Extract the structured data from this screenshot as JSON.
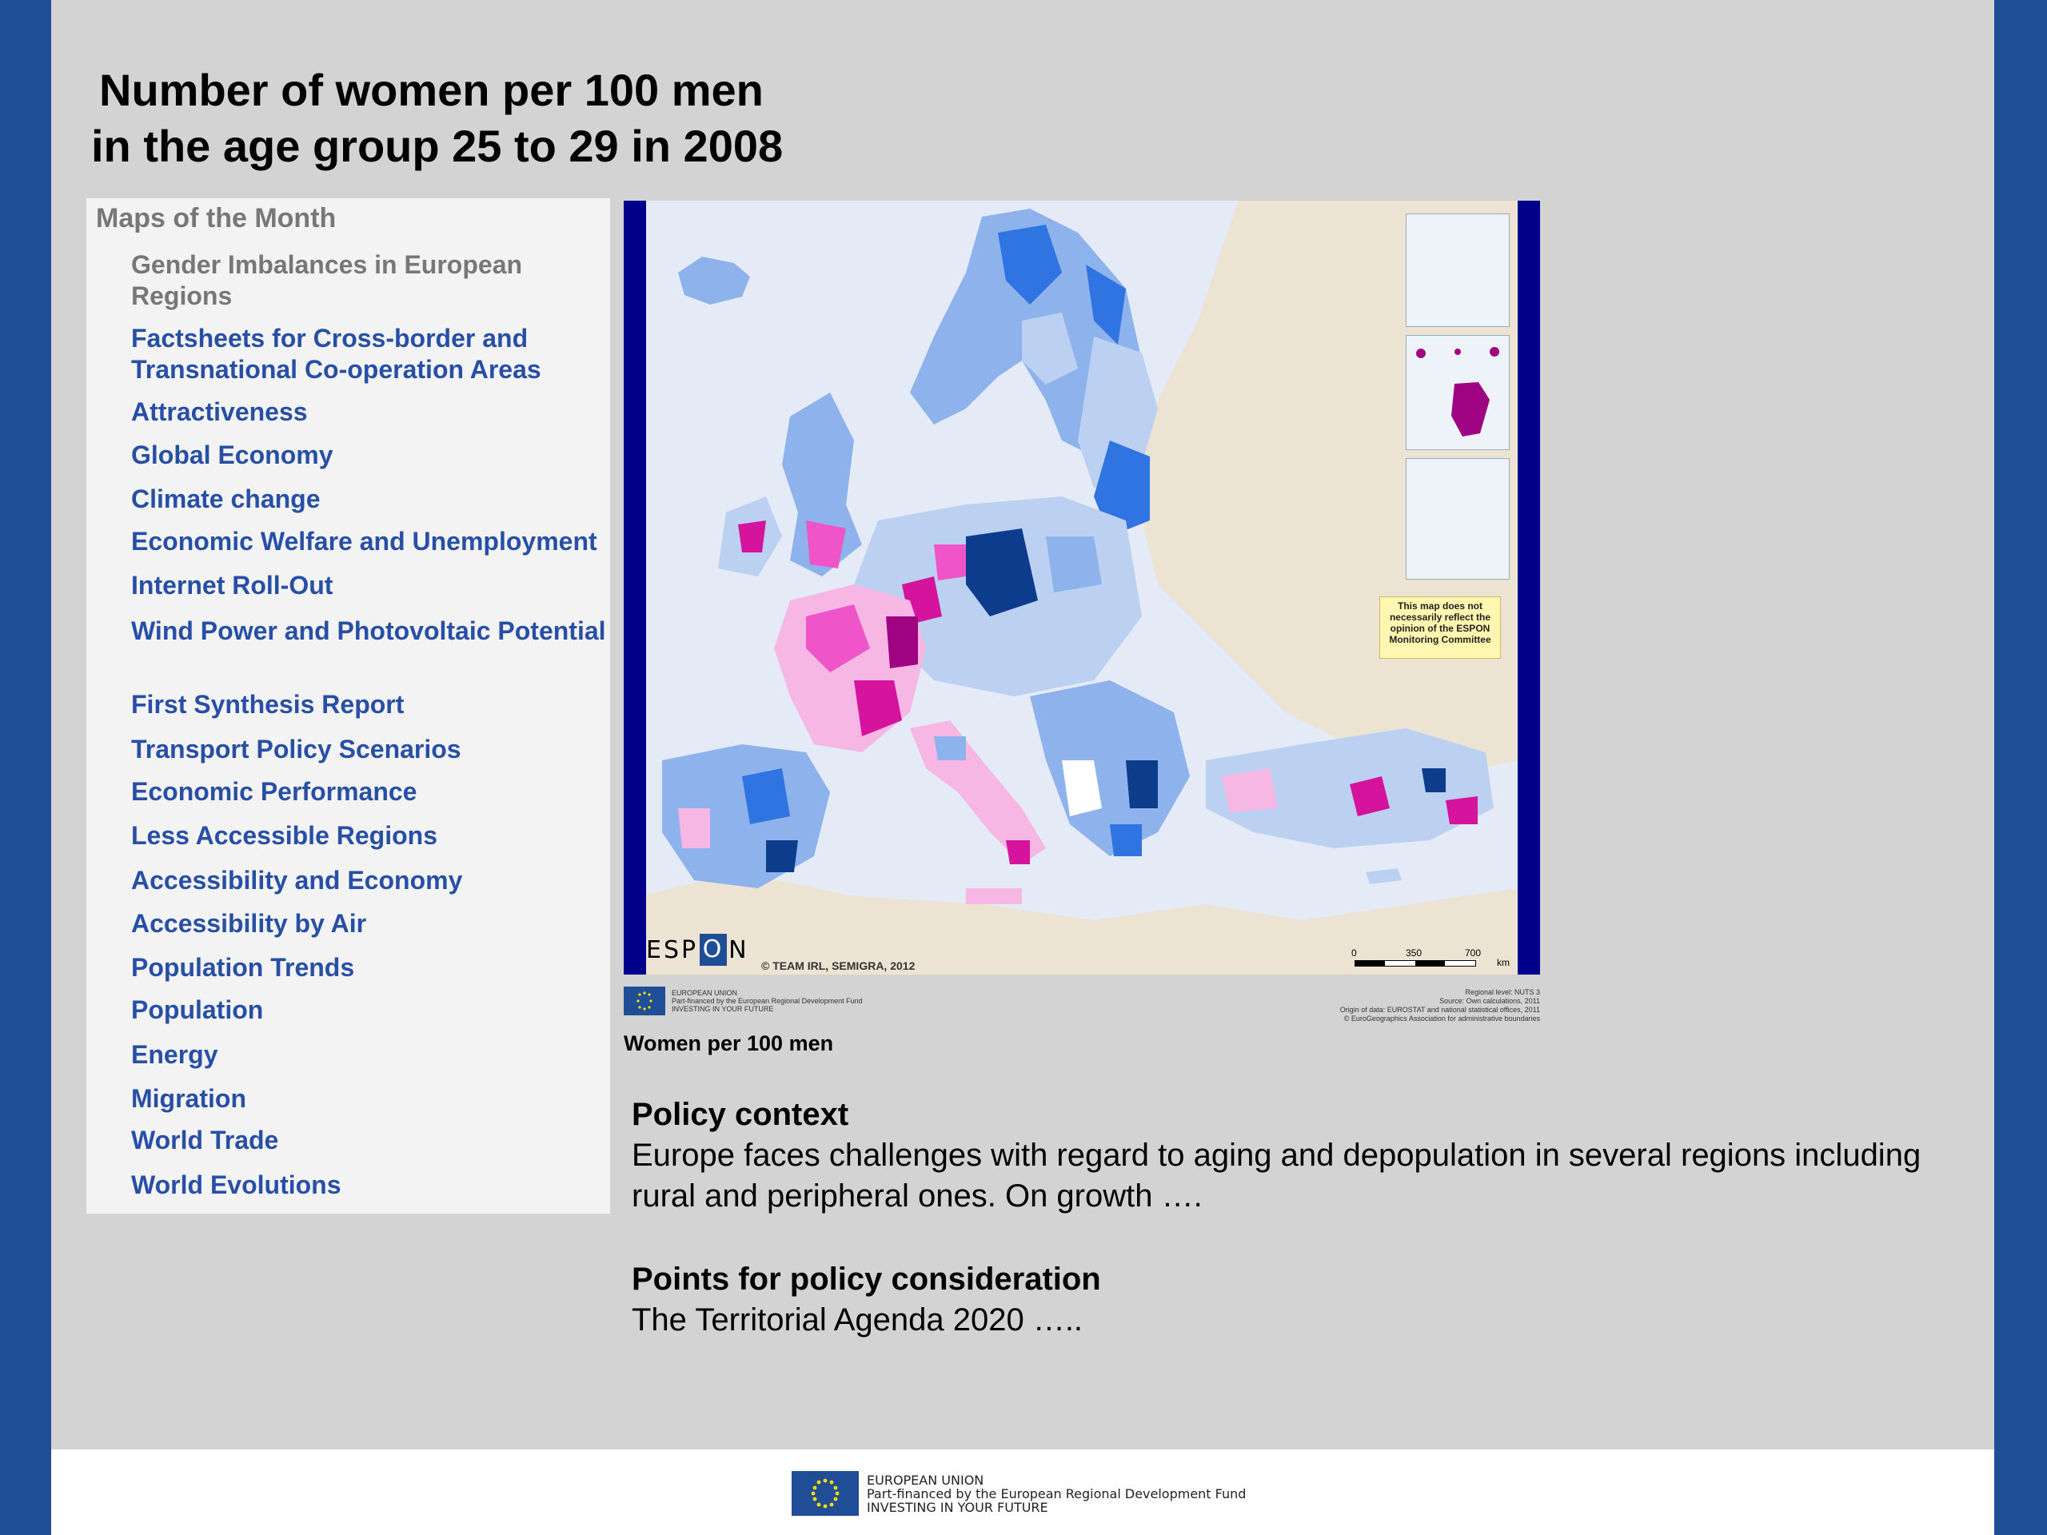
{
  "title": {
    "line1": "Number of women per 100 men",
    "line2": "in the age group 25 to 29 in 2008"
  },
  "nav": {
    "heading": "Maps of the Month",
    "items": [
      {
        "label": "Gender Imbalances in European Regions",
        "current": true
      },
      {
        "label": "Factsheets for Cross-border and Transnational Co-operation Areas"
      },
      {
        "label": "Attractiveness"
      },
      {
        "label": "Global Economy"
      },
      {
        "label": "Climate change"
      },
      {
        "label": "Economic Welfare and Unemployment"
      },
      {
        "label": "Internet Roll-Out"
      },
      {
        "label": "Wind Power and Photovoltaic Potential"
      },
      {
        "label": "First Synthesis Report"
      },
      {
        "label": "Transport Policy Scenarios"
      },
      {
        "label": "Economic Performance"
      },
      {
        "label": "Less Accessible Regions"
      },
      {
        "label": "Accessibility and Economy"
      },
      {
        "label": "Accessibility by Air"
      },
      {
        "label": "Population Trends"
      },
      {
        "label": "Population"
      },
      {
        "label": "Energy"
      },
      {
        "label": "Migration"
      },
      {
        "label": "World Trade"
      },
      {
        "label": "World Evolutions"
      }
    ]
  },
  "map": {
    "logo_left": "ESP",
    "logo_o": "O",
    "logo_right": "N",
    "copyright": "© TEAM IRL, SEMIGRA, 2012",
    "disclaimer": "This map does not necessarily reflect the opinion of the ESPON Monitoring Committee",
    "scale": {
      "zero": "0",
      "mid": "350",
      "max": "700",
      "unit": "km"
    },
    "footer_left": [
      "EUROPEAN UNION",
      "Part-financed by the European Regional Development Fund",
      "INVESTING IN YOUR FUTURE"
    ],
    "footer_right": [
      "Regional level: NUTS 3",
      "Source: Own calculations, 2011",
      "Origin of data: EUROSTAT and national statistical offices, 2011",
      "© EuroGeographics Association for administrative boundaries"
    ],
    "caption": "Women per 100 men",
    "colors": {
      "sea": "#e4ebf6",
      "non_espon": "#ece3d3",
      "blue_dark": "#0d3c8c",
      "blue_mid": "#2f74e0",
      "blue_light": "#8db2ec",
      "blue_pale": "#bcd0f2",
      "pink_pale": "#f6b7e4",
      "pink_mid": "#ef54c8",
      "magenta": "#d6139c",
      "purple": "#a00382"
    }
  },
  "policy": {
    "heading": "Policy context",
    "body": "Europe faces challenges with regard to aging and depopulation in several regions including rural and peripheral ones. On growth …."
  },
  "points": {
    "heading": "Points for policy consideration",
    "body": "The Territorial Agenda 2020 ….."
  },
  "footer": {
    "line1": "EUROPEAN UNION",
    "line2": "Part-financed by the European Regional Development Fund",
    "line3": "INVESTING IN YOUR FUTURE"
  },
  "accent_colors": {
    "side_bar": "#1f4e97",
    "nav_link": "#284fa6",
    "nav_current": "#777777"
  }
}
